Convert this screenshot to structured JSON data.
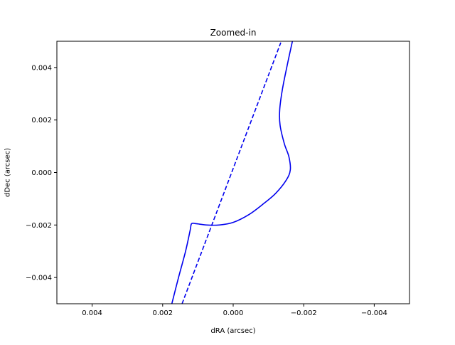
{
  "chart_data": {
    "type": "line",
    "title": "Zoomed-in",
    "xlabel": "dRA (arcsec)",
    "ylabel": "dDec (arcsec)",
    "xlim": [
      0.005,
      -0.005
    ],
    "ylim": [
      -0.005,
      0.005
    ],
    "x_inverted": true,
    "grid": false,
    "xticks": [
      0.004,
      0.002,
      0.0,
      -0.002,
      -0.004
    ],
    "xtick_labels": [
      "0.004",
      "0.002",
      "0.000",
      "−0.002",
      "−0.004"
    ],
    "yticks": [
      0.004,
      0.002,
      0.0,
      -0.002,
      -0.004
    ],
    "ytick_labels": [
      "0.004",
      "0.002",
      "0.000",
      "−0.002",
      "−0.004"
    ],
    "series": [
      {
        "style": "solid",
        "color": "#0000ee",
        "x": [
          0.00174,
          0.00155,
          0.00135,
          0.00122,
          0.00118,
          0.00105,
          0.00075,
          0.0004,
          0.0,
          -0.00045,
          -0.00085,
          -0.0012,
          -0.0015,
          -0.00162,
          -0.00158,
          -0.00145,
          -0.00133,
          -0.00132,
          -0.0014,
          -0.00155,
          -0.00168
        ],
        "y": [
          -0.005,
          -0.004,
          -0.003,
          -0.0022,
          -0.00195,
          -0.00195,
          -0.002,
          -0.002,
          -0.0019,
          -0.0016,
          -0.0012,
          -0.0008,
          -0.0003,
          0.0001,
          0.0006,
          0.0011,
          0.0018,
          0.0024,
          0.0032,
          0.0042,
          0.005
        ]
      },
      {
        "style": "dashed",
        "color": "#0000ee",
        "x": [
          0.00145,
          -0.00135
        ],
        "y": [
          -0.005,
          0.00495
        ]
      }
    ]
  }
}
